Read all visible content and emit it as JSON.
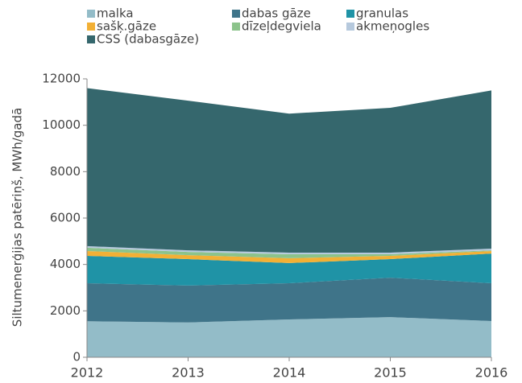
{
  "chart_data": {
    "type": "stacked_area",
    "y_label": "Siltumenerģijas patēriņš, MWh/gadā",
    "x": [
      2012,
      2013,
      2014,
      2015,
      2016
    ],
    "xlim": [
      2012,
      2016
    ],
    "xticks": [
      2012,
      2013,
      2014,
      2015,
      2016
    ],
    "ylim": [
      0,
      12000
    ],
    "yticks": [
      0,
      2000,
      4000,
      6000,
      8000,
      10000,
      12000
    ],
    "series": [
      {
        "name": "malka",
        "color": "#93bcc8",
        "values": [
          1550,
          1500,
          1630,
          1730,
          1560
        ]
      },
      {
        "name": "dabas gāze",
        "color": "#3f7489",
        "values": [
          1640,
          1590,
          1560,
          1700,
          1630
        ]
      },
      {
        "name": "granulas",
        "color": "#1f93a6",
        "values": [
          1180,
          1140,
          870,
          800,
          1280
        ]
      },
      {
        "name": "sašķ.gāze",
        "color": "#f2b035",
        "values": [
          210,
          170,
          210,
          140,
          110
        ]
      },
      {
        "name": "dīzeļdegviela",
        "color": "#8cc38b",
        "values": [
          140,
          140,
          170,
          70,
          30
        ]
      },
      {
        "name": "akmeņogles",
        "color": "#b6c9dd",
        "values": [
          70,
          70,
          70,
          70,
          70
        ]
      },
      {
        "name": "CSS (dabasgāze)",
        "color": "#35676d",
        "values": [
          6810,
          6450,
          5990,
          6240,
          6820
        ]
      }
    ]
  }
}
